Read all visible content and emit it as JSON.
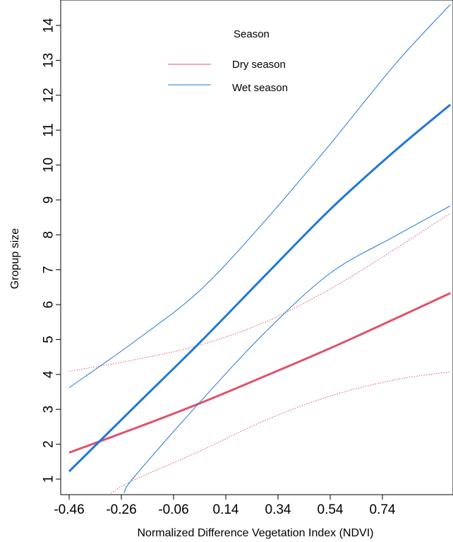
{
  "chart_data": {
    "type": "line",
    "xlabel": "Normalized Difference Vegetation Index (NDVI)",
    "ylabel": "Gropup size",
    "xlim": [
      -0.46,
      1.0
    ],
    "ylim": [
      0.6,
      14.5
    ],
    "x_ticks": [
      -0.46,
      -0.26,
      -0.06,
      0.14,
      0.34,
      0.54,
      0.74
    ],
    "x_tick_labels": [
      "-0.46",
      "-0.26",
      "-0.06",
      "0.14",
      "0.34",
      "0.54",
      "0.74"
    ],
    "y_ticks": [
      1,
      2,
      3,
      4,
      5,
      6,
      7,
      8,
      9,
      10,
      11,
      12,
      13,
      14
    ],
    "y_tick_labels": [
      "1",
      "2",
      "3",
      "4",
      "5",
      "6",
      "7",
      "8",
      "9",
      "10",
      "11",
      "12",
      "13",
      "14"
    ],
    "legend": {
      "title": "Season",
      "placement": "top-center"
    },
    "series": [
      {
        "name": "Dry season",
        "role": "fit",
        "color": "#DF536B",
        "style": "solid",
        "x": [
          -0.46,
          -0.21,
          0.04,
          0.29,
          0.54,
          0.79,
          1.0
        ],
        "y": [
          1.76,
          2.45,
          3.17,
          3.95,
          4.75,
          5.6,
          6.33
        ]
      },
      {
        "name": "Dry season",
        "role": "ci-upper",
        "color": "#DF536B",
        "style": "dotted",
        "x": [
          -0.46,
          -0.21,
          0.04,
          0.29,
          0.54,
          0.79,
          1.0
        ],
        "y": [
          4.09,
          4.42,
          4.84,
          5.5,
          6.45,
          7.6,
          8.62
        ]
      },
      {
        "name": "Dry season",
        "role": "ci-lower",
        "color": "#DF536B",
        "style": "dotted",
        "x": [
          -0.3,
          -0.21,
          0.04,
          0.29,
          0.54,
          0.79,
          1.0
        ],
        "y": [
          0.6,
          0.98,
          1.8,
          2.68,
          3.38,
          3.85,
          4.07
        ]
      },
      {
        "name": "Wet season",
        "role": "fit",
        "color": "#1F78D8",
        "style": "solid",
        "x": [
          -0.46,
          -0.21,
          0.04,
          0.29,
          0.54,
          0.79,
          1.0
        ],
        "y": [
          1.22,
          3.07,
          4.91,
          6.83,
          8.73,
          10.42,
          11.73
        ]
      },
      {
        "name": "Wet season",
        "role": "ci-upper",
        "color": "#1F78D8",
        "style": "solid-thin",
        "x": [
          -0.46,
          -0.21,
          0.04,
          0.29,
          0.54,
          0.79,
          1.0
        ],
        "y": [
          3.62,
          4.94,
          6.4,
          8.4,
          10.6,
          12.9,
          14.6
        ]
      },
      {
        "name": "Wet season",
        "role": "ci-lower",
        "color": "#1F78D8",
        "style": "solid-thin",
        "x": [
          -0.25,
          -0.21,
          0.04,
          0.29,
          0.54,
          0.79,
          1.0
        ],
        "y": [
          0.6,
          1.07,
          3.2,
          5.2,
          6.9,
          7.97,
          8.83
        ]
      }
    ]
  }
}
